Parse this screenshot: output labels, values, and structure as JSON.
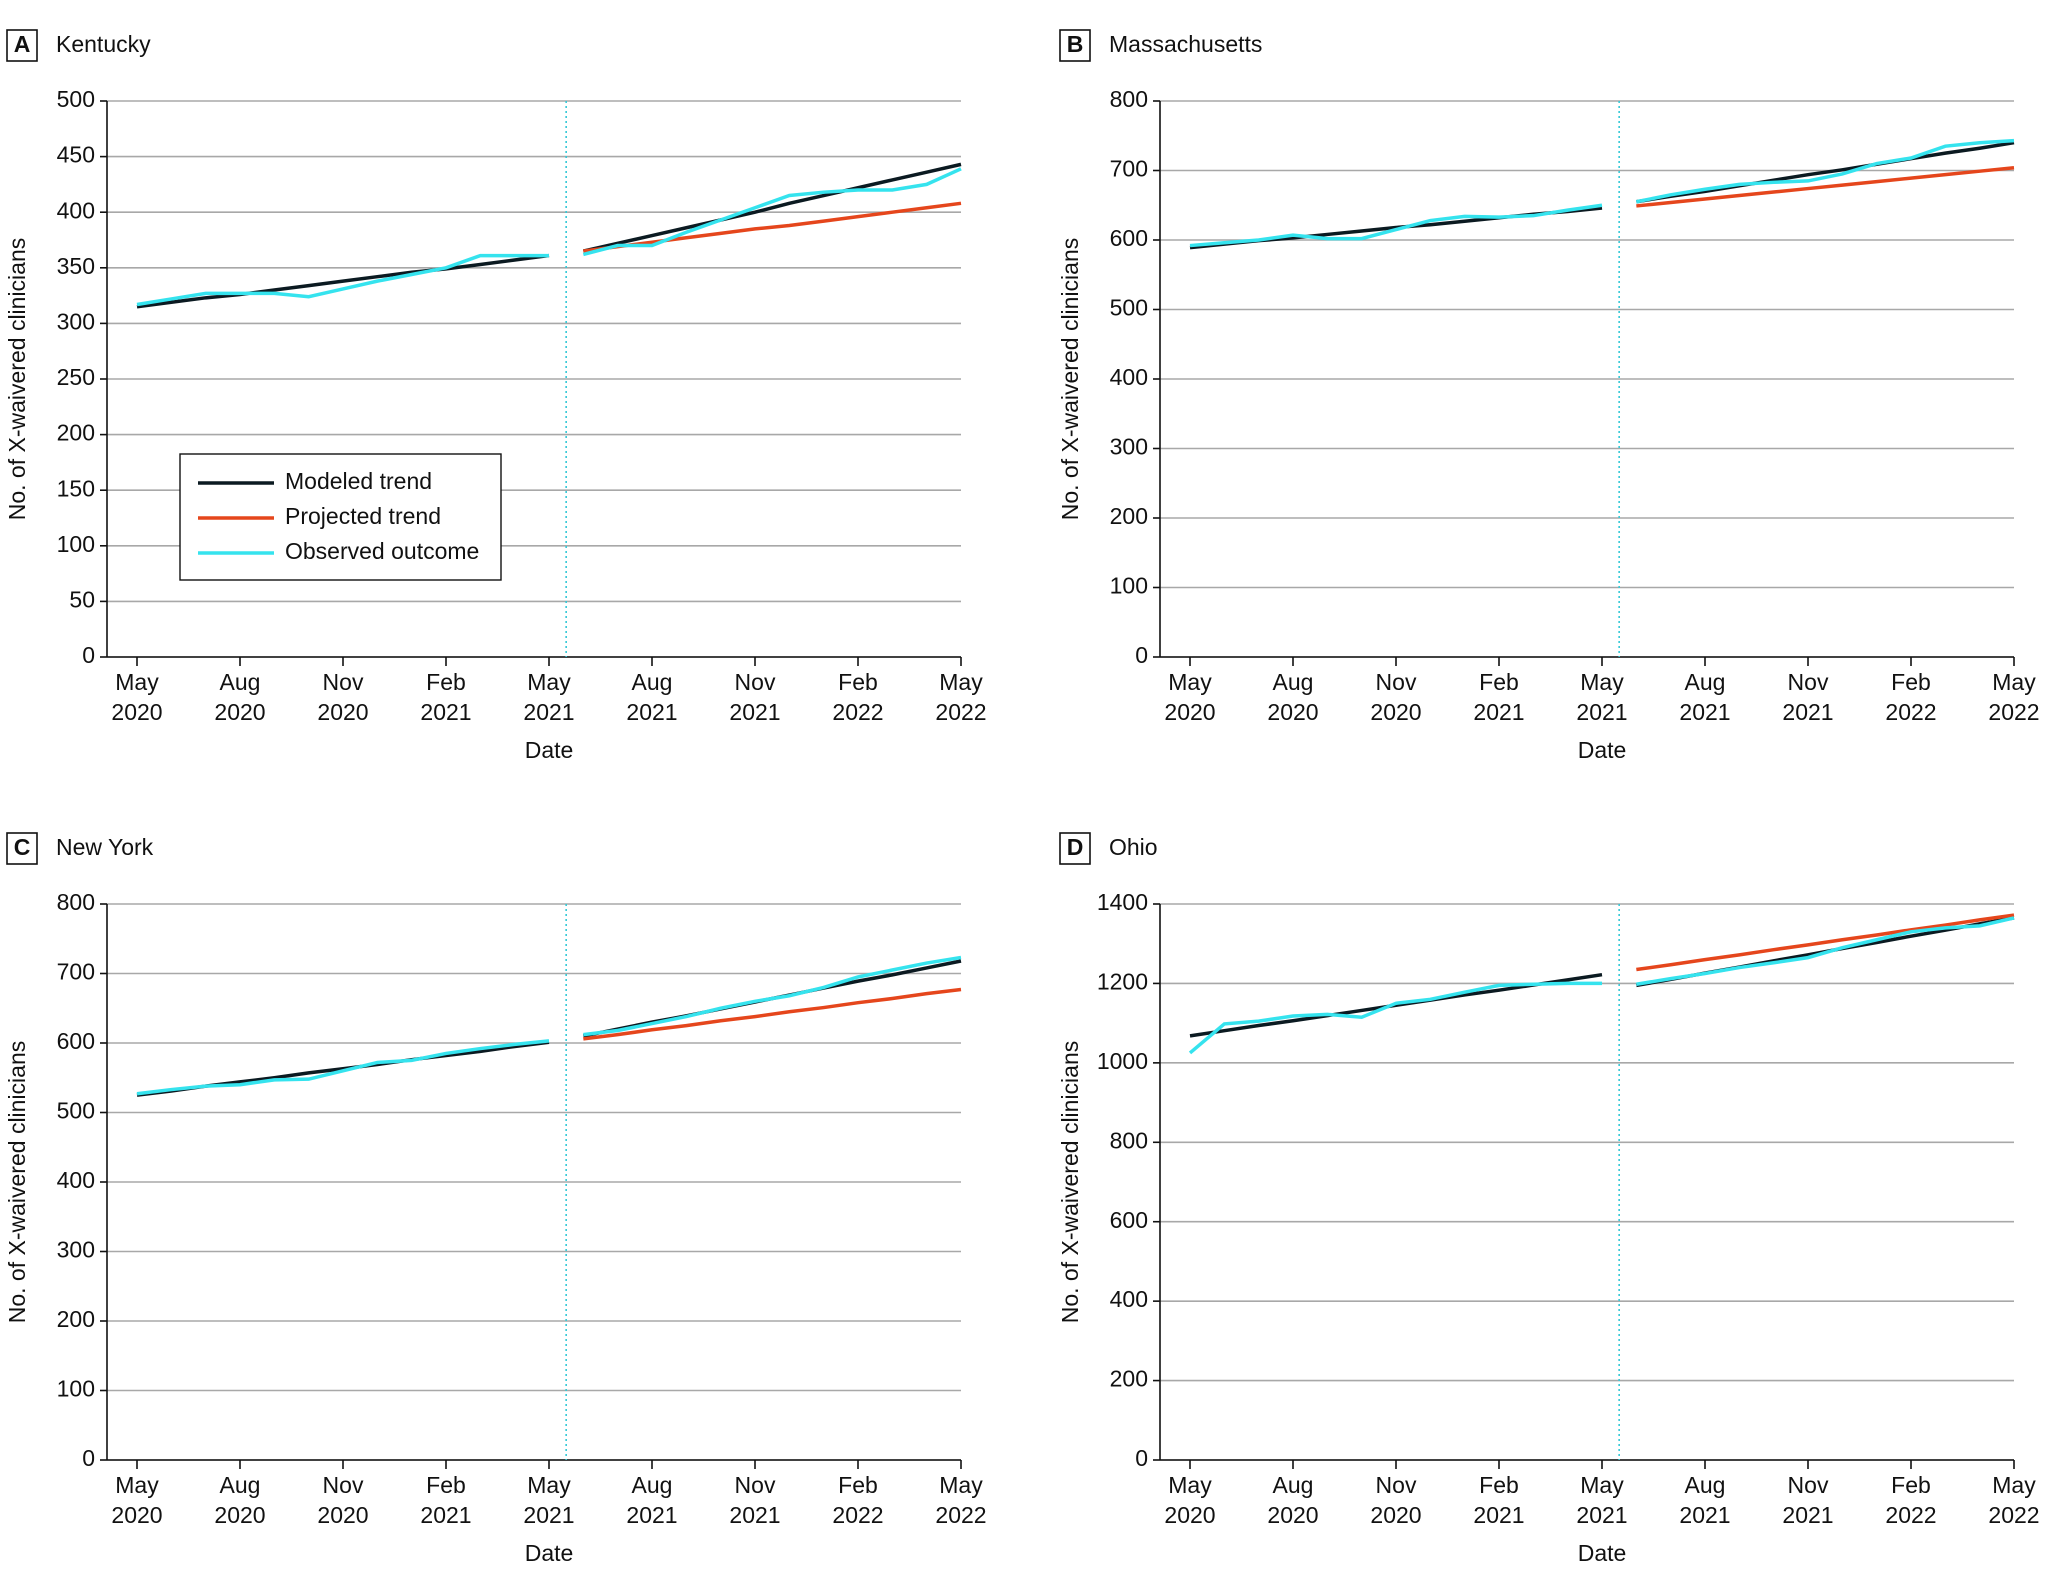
{
  "chart_data": [
    {
      "type": "line",
      "panel": "A",
      "title": "Kentucky",
      "xlabel": "Date",
      "ylabel": "No. of X-waivered clinicians",
      "x": [
        "2020-05",
        "2020-06",
        "2020-07",
        "2020-08",
        "2020-09",
        "2020-10",
        "2020-11",
        "2020-12",
        "2021-01",
        "2021-02",
        "2021-03",
        "2021-04",
        "2021-05",
        "2021-06",
        "2021-07",
        "2021-08",
        "2021-09",
        "2021-10",
        "2021-11",
        "2021-12",
        "2022-01",
        "2022-02",
        "2022-03",
        "2022-04",
        "2022-05"
      ],
      "xticks": [
        {
          "value": "2020-05",
          "label": "May 2020"
        },
        {
          "value": "2020-08",
          "label": "Aug 2020"
        },
        {
          "value": "2020-11",
          "label": "Nov 2020"
        },
        {
          "value": "2021-02",
          "label": "Feb 2021"
        },
        {
          "value": "2021-05",
          "label": "May 2021"
        },
        {
          "value": "2021-08",
          "label": "Aug 2021"
        },
        {
          "value": "2021-11",
          "label": "Nov 2021"
        },
        {
          "value": "2022-02",
          "label": "Feb 2022"
        },
        {
          "value": "2022-05",
          "label": "May 2022"
        }
      ],
      "ylim": [
        0,
        500
      ],
      "yticks": [
        0,
        50,
        100,
        150,
        200,
        250,
        300,
        350,
        400,
        450,
        500
      ],
      "grid": true,
      "legend": "center left",
      "intervention_after": "2021-05",
      "series": [
        {
          "name": "Modeled trend",
          "color": "#0b1a21",
          "values": [
            315,
            319,
            323,
            326,
            330,
            334,
            338,
            342,
            346,
            349,
            353,
            357,
            361,
            365,
            372,
            379,
            386,
            393,
            400,
            408,
            415,
            422,
            429,
            436,
            443
          ]
        },
        {
          "name": "Projected trend",
          "color": "#e5461c",
          "values": [
            null,
            null,
            null,
            null,
            null,
            null,
            null,
            null,
            null,
            null,
            null,
            null,
            null,
            365,
            369,
            373,
            377,
            381,
            385,
            388,
            392,
            396,
            400,
            404,
            408
          ]
        },
        {
          "name": "Observed outcome",
          "color": "#35e3ee",
          "values": [
            317,
            322,
            327,
            327,
            327,
            324,
            331,
            338,
            344,
            350,
            361,
            361,
            361,
            362,
            370,
            370,
            382,
            393,
            404,
            415,
            418,
            420,
            420,
            425,
            439
          ]
        }
      ]
    },
    {
      "type": "line",
      "panel": "B",
      "title": "Massachusetts",
      "xlabel": "Date",
      "ylabel": "No. of X-waivered clinicians",
      "x": [
        "2020-05",
        "2020-06",
        "2020-07",
        "2020-08",
        "2020-09",
        "2020-10",
        "2020-11",
        "2020-12",
        "2021-01",
        "2021-02",
        "2021-03",
        "2021-04",
        "2021-05",
        "2021-06",
        "2021-07",
        "2021-08",
        "2021-09",
        "2021-10",
        "2021-11",
        "2021-12",
        "2022-01",
        "2022-02",
        "2022-03",
        "2022-04",
        "2022-05"
      ],
      "xticks": [
        {
          "value": "2020-05",
          "label": "May 2020"
        },
        {
          "value": "2020-08",
          "label": "Aug 2020"
        },
        {
          "value": "2020-11",
          "label": "Nov 2020"
        },
        {
          "value": "2021-02",
          "label": "Feb 2021"
        },
        {
          "value": "2021-05",
          "label": "May 2021"
        },
        {
          "value": "2021-08",
          "label": "Aug 2021"
        },
        {
          "value": "2021-11",
          "label": "Nov 2021"
        },
        {
          "value": "2022-02",
          "label": "Feb 2022"
        },
        {
          "value": "2022-05",
          "label": "May 2022"
        }
      ],
      "ylim": [
        0,
        800
      ],
      "yticks": [
        0,
        100,
        200,
        300,
        400,
        500,
        600,
        700,
        800
      ],
      "grid": true,
      "intervention_after": "2021-05",
      "series": [
        {
          "name": "Modeled trend",
          "color": "#0b1a21",
          "values": [
            589,
            594,
            599,
            603,
            608,
            613,
            618,
            622,
            627,
            632,
            637,
            641,
            646,
            655,
            663,
            670,
            678,
            686,
            694,
            701,
            709,
            717,
            725,
            732,
            740
          ]
        },
        {
          "name": "Projected trend",
          "color": "#e5461c",
          "values": [
            null,
            null,
            null,
            null,
            null,
            null,
            null,
            null,
            null,
            null,
            null,
            null,
            null,
            649,
            654,
            659,
            664,
            669,
            674,
            679,
            684,
            689,
            694,
            699,
            704
          ]
        },
        {
          "name": "Observed outcome",
          "color": "#35e3ee",
          "values": [
            592,
            596,
            600,
            607,
            602,
            602,
            615,
            628,
            634,
            633,
            635,
            643,
            650,
            655,
            665,
            673,
            680,
            683,
            685,
            695,
            710,
            718,
            735,
            740,
            743
          ]
        }
      ]
    },
    {
      "type": "line",
      "panel": "C",
      "title": "New York",
      "xlabel": "Date",
      "ylabel": "No. of X-waivered clinicians",
      "x": [
        "2020-05",
        "2020-06",
        "2020-07",
        "2020-08",
        "2020-09",
        "2020-10",
        "2020-11",
        "2020-12",
        "2021-01",
        "2021-02",
        "2021-03",
        "2021-04",
        "2021-05",
        "2021-06",
        "2021-07",
        "2021-08",
        "2021-09",
        "2021-10",
        "2021-11",
        "2021-12",
        "2022-01",
        "2022-02",
        "2022-03",
        "2022-04",
        "2022-05"
      ],
      "xticks": [
        {
          "value": "2020-05",
          "label": "May 2020"
        },
        {
          "value": "2020-08",
          "label": "Aug 2020"
        },
        {
          "value": "2020-11",
          "label": "Nov 2020"
        },
        {
          "value": "2021-02",
          "label": "Feb 2021"
        },
        {
          "value": "2021-05",
          "label": "May 2021"
        },
        {
          "value": "2021-08",
          "label": "Aug 2021"
        },
        {
          "value": "2021-11",
          "label": "Nov 2021"
        },
        {
          "value": "2022-02",
          "label": "Feb 2022"
        },
        {
          "value": "2022-05",
          "label": "May 2022"
        }
      ],
      "ylim": [
        0,
        800
      ],
      "yticks": [
        0,
        100,
        200,
        300,
        400,
        500,
        600,
        700,
        800
      ],
      "grid": true,
      "intervention_after": "2021-05",
      "series": [
        {
          "name": "Modeled trend",
          "color": "#0b1a21",
          "values": [
            525,
            531,
            538,
            544,
            550,
            557,
            563,
            569,
            576,
            582,
            588,
            595,
            601,
            610,
            620,
            630,
            639,
            649,
            659,
            669,
            679,
            689,
            698,
            708,
            718
          ]
        },
        {
          "name": "Projected trend",
          "color": "#e5461c",
          "values": [
            null,
            null,
            null,
            null,
            null,
            null,
            null,
            null,
            null,
            null,
            null,
            null,
            null,
            606,
            612,
            619,
            625,
            632,
            638,
            645,
            651,
            658,
            664,
            671,
            677
          ]
        },
        {
          "name": "Observed outcome",
          "color": "#35e3ee",
          "values": [
            527,
            533,
            538,
            540,
            547,
            548,
            560,
            572,
            575,
            585,
            592,
            598,
            603,
            612,
            618,
            628,
            638,
            650,
            660,
            668,
            680,
            695,
            705,
            715,
            723
          ]
        }
      ]
    },
    {
      "type": "line",
      "panel": "D",
      "title": "Ohio",
      "xlabel": "Date",
      "ylabel": "No. of X-waivered clinicians",
      "x": [
        "2020-05",
        "2020-06",
        "2020-07",
        "2020-08",
        "2020-09",
        "2020-10",
        "2020-11",
        "2020-12",
        "2021-01",
        "2021-02",
        "2021-03",
        "2021-04",
        "2021-05",
        "2021-06",
        "2021-07",
        "2021-08",
        "2021-09",
        "2021-10",
        "2021-11",
        "2021-12",
        "2022-01",
        "2022-02",
        "2022-03",
        "2022-04",
        "2022-05"
      ],
      "xticks": [
        {
          "value": "2020-05",
          "label": "May 2020"
        },
        {
          "value": "2020-08",
          "label": "Aug 2020"
        },
        {
          "value": "2020-11",
          "label": "Nov 2020"
        },
        {
          "value": "2021-02",
          "label": "Feb 2021"
        },
        {
          "value": "2021-05",
          "label": "May 2021"
        },
        {
          "value": "2021-08",
          "label": "Aug 2021"
        },
        {
          "value": "2021-11",
          "label": "Nov 2021"
        },
        {
          "value": "2022-02",
          "label": "Feb 2022"
        },
        {
          "value": "2022-05",
          "label": "May 2022"
        }
      ],
      "ylim": [
        0,
        1400
      ],
      "yticks": [
        0,
        200,
        400,
        600,
        800,
        1000,
        1200,
        1400
      ],
      "grid": true,
      "intervention_after": "2021-05",
      "series": [
        {
          "name": "Modeled trend",
          "color": "#0b1a21",
          "values": [
            1068,
            1081,
            1094,
            1106,
            1119,
            1132,
            1145,
            1158,
            1171,
            1183,
            1196,
            1209,
            1222,
            1195,
            1210,
            1226,
            1241,
            1257,
            1272,
            1288,
            1303,
            1319,
            1334,
            1350,
            1365
          ]
        },
        {
          "name": "Projected trend",
          "color": "#e5461c",
          "values": [
            null,
            null,
            null,
            null,
            null,
            null,
            null,
            null,
            null,
            null,
            null,
            null,
            null,
            1235,
            1247,
            1260,
            1272,
            1285,
            1297,
            1310,
            1322,
            1335,
            1347,
            1360,
            1372
          ]
        },
        {
          "name": "Observed outcome",
          "color": "#35e3ee",
          "values": [
            1025,
            1098,
            1105,
            1118,
            1122,
            1115,
            1150,
            1160,
            1178,
            1195,
            1198,
            1200,
            1200,
            1198,
            1212,
            1225,
            1240,
            1252,
            1265,
            1290,
            1310,
            1330,
            1340,
            1345,
            1365
          ]
        }
      ]
    }
  ]
}
